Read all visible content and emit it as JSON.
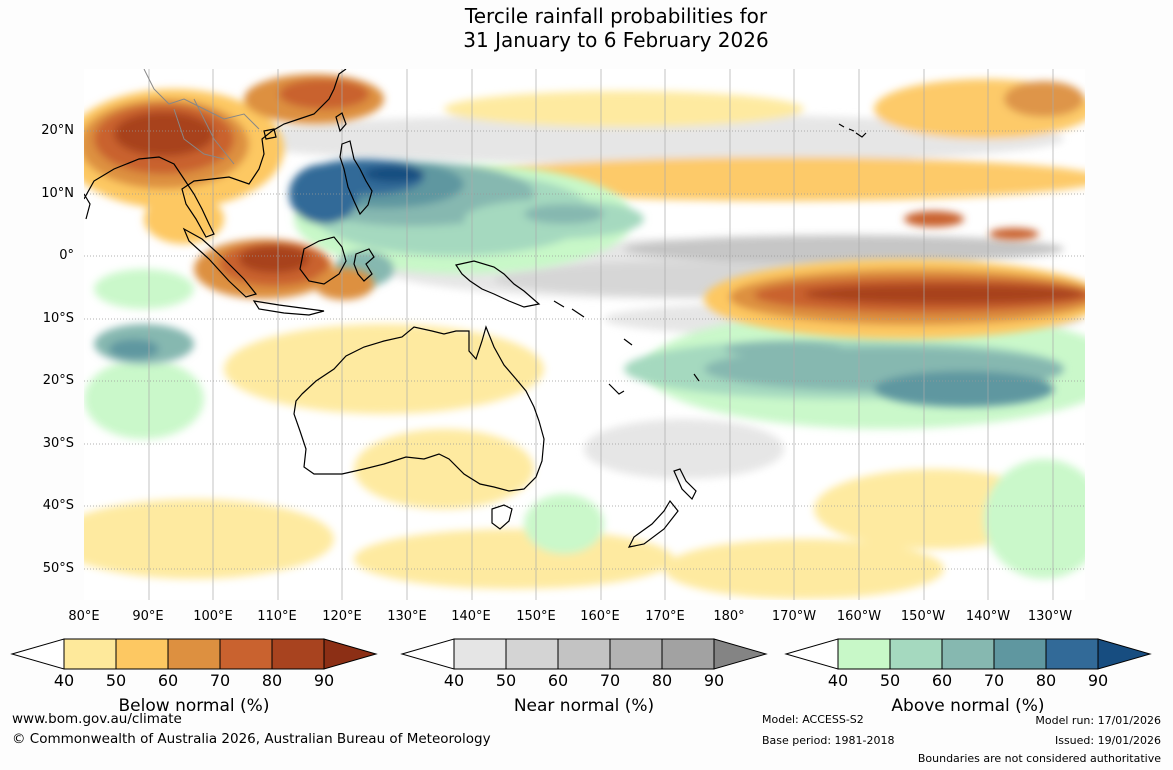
{
  "title_line1": "Tercile rainfall probabilities for",
  "title_line2": "31 January to 6 February 2026",
  "latitude_labels": [
    "20°N",
    "10°N",
    "0°",
    "10°S",
    "20°S",
    "30°S",
    "40°S",
    "50°S"
  ],
  "longitude_labels": [
    "80°E",
    "90°E",
    "100°E",
    "110°E",
    "120°E",
    "130°E",
    "140°E",
    "150°E",
    "160°E",
    "170°E",
    "180°",
    "170°W",
    "160°W",
    "150°W",
    "140°W",
    "130°W"
  ],
  "colorbars": [
    {
      "title": "Below normal (%)",
      "ticks": [
        "40",
        "50",
        "60",
        "70",
        "80",
        "90"
      ],
      "colors": [
        "#fee99b",
        "#fdc862",
        "#dd9040",
        "#c9622f",
        "#a8431f",
        "#8c2f15"
      ]
    },
    {
      "title": "Near normal (%)",
      "ticks": [
        "40",
        "50",
        "60",
        "70",
        "80",
        "90"
      ],
      "colors": [
        "#e5e5e5",
        "#d4d4d4",
        "#c3c3c3",
        "#b3b3b3",
        "#a2a2a2",
        "#848484"
      ]
    },
    {
      "title": "Above normal (%)",
      "ticks": [
        "40",
        "50",
        "60",
        "70",
        "80",
        "90"
      ],
      "colors": [
        "#c8f8c8",
        "#a5d9bf",
        "#86b8b0",
        "#5f97a0",
        "#326a98",
        "#174d80"
      ]
    }
  ],
  "footer": {
    "website": "www.bom.gov.au/climate",
    "copyright": "© Commonwealth of Australia 2026, Australian Bureau of Meteorology",
    "model": "Model: ACCESS-S2",
    "base_period": "Base period: 1981-2018",
    "model_run": "Model run: 17/01/2026",
    "issued": "Issued: 19/01/2026",
    "disclaimer": "Boundaries are not considered authoritative"
  }
}
